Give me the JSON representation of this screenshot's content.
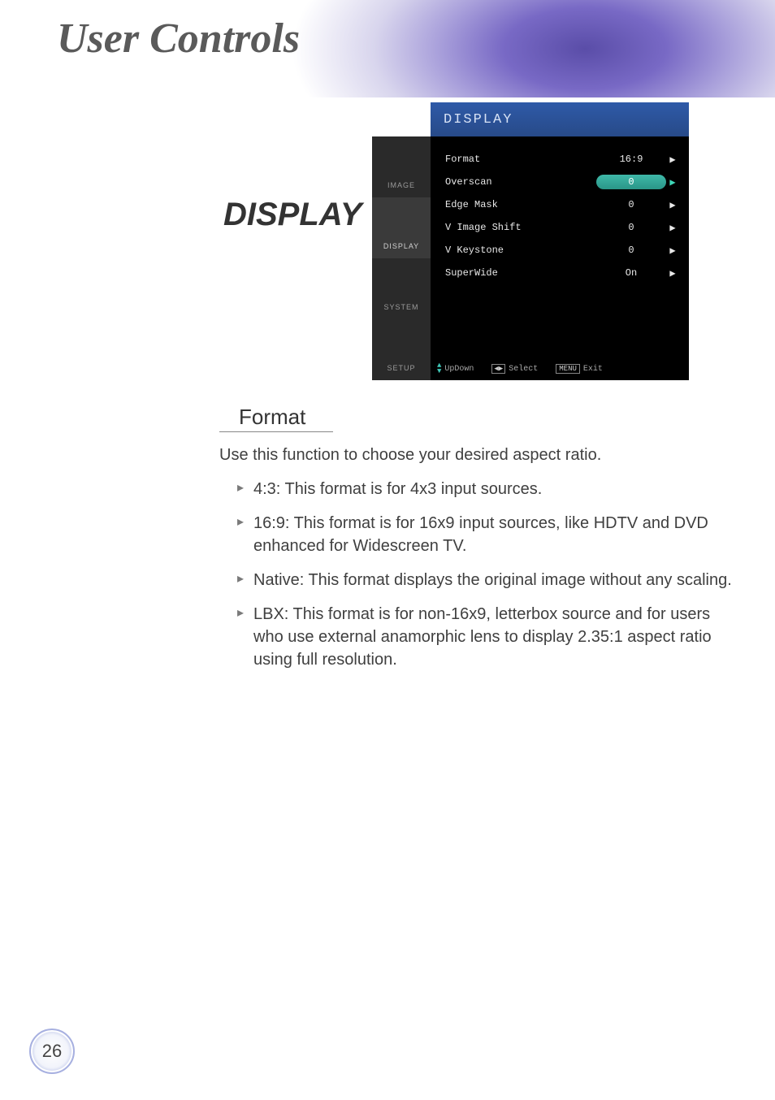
{
  "banner": {
    "title": "User Controls"
  },
  "section_title": "DISPLAY",
  "osd": {
    "header": "DISPLAY",
    "tabs": [
      "IMAGE",
      "DISPLAY",
      "SYSTEM",
      "SETUP"
    ],
    "active_tab_index": 1,
    "rows": [
      {
        "label": "Format",
        "value": "16:9",
        "highlight": false
      },
      {
        "label": "Overscan",
        "value": "0",
        "highlight": true
      },
      {
        "label": "Edge Mask",
        "value": "0",
        "highlight": false
      },
      {
        "label": "V Image Shift",
        "value": "0",
        "highlight": false
      },
      {
        "label": "V Keystone",
        "value": "0",
        "highlight": false
      },
      {
        "label": "SuperWide",
        "value": "On",
        "highlight": false
      }
    ],
    "footer": {
      "updown": "UpDown",
      "select": "Select",
      "menu_key": "MENU",
      "exit": "Exit"
    },
    "colors": {
      "header_bg_top": "#2f5aa8",
      "header_bg_bottom": "#274a88",
      "body_bg": "#000000",
      "sidebar_bg": "#3a3a3a",
      "highlight_bg_top": "#3fb8a8",
      "highlight_bg_bottom": "#2a9688",
      "text": "#e8e8e8"
    }
  },
  "body": {
    "subheading": "Format",
    "intro": "Use this function to choose your desired aspect ratio.",
    "bullets": [
      "4:3: This format is for 4x3 input sources.",
      "16:9: This format is for 16x9 input sources, like HDTV and DVD enhanced for Widescreen TV.",
      "Native: This format displays the original image without any scaling.",
      "LBX: This format is for non-16x9, letterbox source and for users who use external anamorphic lens to display 2.35:1 aspect ratio using full resolution."
    ]
  },
  "page_number": "26",
  "style": {
    "banner_title_font": "Times New Roman italic bold",
    "banner_title_color": "#5a5a5a",
    "section_title_color": "#333333",
    "body_text_color": "#3f3f3f",
    "body_font_size_pt": 15,
    "bullet_glyph": "▸",
    "bullet_color": "#7a7a7a"
  }
}
